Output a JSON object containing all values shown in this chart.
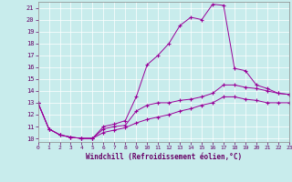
{
  "xlabel": "Windchill (Refroidissement éolien,°C)",
  "background_color": "#c8ecec",
  "line_color": "#990099",
  "xlim": [
    0,
    23
  ],
  "ylim": [
    9.7,
    21.5
  ],
  "xticks": [
    0,
    1,
    2,
    3,
    4,
    5,
    6,
    7,
    8,
    9,
    10,
    11,
    12,
    13,
    14,
    15,
    16,
    17,
    18,
    19,
    20,
    21,
    22,
    23
  ],
  "yticks": [
    10,
    11,
    12,
    13,
    14,
    15,
    16,
    17,
    18,
    19,
    20,
    21
  ],
  "series1": [
    [
      0,
      13.0
    ],
    [
      1,
      10.8
    ],
    [
      2,
      10.3
    ],
    [
      3,
      10.1
    ],
    [
      4,
      10.0
    ],
    [
      5,
      10.0
    ],
    [
      6,
      11.0
    ],
    [
      7,
      11.2
    ],
    [
      8,
      11.5
    ],
    [
      9,
      13.5
    ],
    [
      10,
      16.2
    ],
    [
      11,
      17.0
    ],
    [
      12,
      18.0
    ],
    [
      13,
      19.5
    ],
    [
      14,
      20.2
    ],
    [
      15,
      20.0
    ],
    [
      16,
      21.3
    ],
    [
      17,
      21.2
    ],
    [
      18,
      15.9
    ],
    [
      19,
      15.7
    ],
    [
      20,
      14.5
    ],
    [
      21,
      14.2
    ],
    [
      22,
      13.8
    ],
    [
      23,
      13.7
    ]
  ],
  "series2": [
    [
      0,
      13.0
    ],
    [
      1,
      10.8
    ],
    [
      2,
      10.3
    ],
    [
      3,
      10.1
    ],
    [
      4,
      10.0
    ],
    [
      5,
      10.0
    ],
    [
      6,
      10.8
    ],
    [
      7,
      11.0
    ],
    [
      8,
      11.1
    ],
    [
      9,
      12.3
    ],
    [
      10,
      12.8
    ],
    [
      11,
      13.0
    ],
    [
      12,
      13.0
    ],
    [
      13,
      13.2
    ],
    [
      14,
      13.3
    ],
    [
      15,
      13.5
    ],
    [
      16,
      13.8
    ],
    [
      17,
      14.5
    ],
    [
      18,
      14.5
    ],
    [
      19,
      14.3
    ],
    [
      20,
      14.2
    ],
    [
      21,
      14.0
    ],
    [
      22,
      13.8
    ],
    [
      23,
      13.7
    ]
  ],
  "series3": [
    [
      0,
      13.0
    ],
    [
      1,
      10.8
    ],
    [
      2,
      10.3
    ],
    [
      3,
      10.1
    ],
    [
      4,
      10.0
    ],
    [
      5,
      10.0
    ],
    [
      6,
      10.5
    ],
    [
      7,
      10.7
    ],
    [
      8,
      10.9
    ],
    [
      9,
      11.3
    ],
    [
      10,
      11.6
    ],
    [
      11,
      11.8
    ],
    [
      12,
      12.0
    ],
    [
      13,
      12.3
    ],
    [
      14,
      12.5
    ],
    [
      15,
      12.8
    ],
    [
      16,
      13.0
    ],
    [
      17,
      13.5
    ],
    [
      18,
      13.5
    ],
    [
      19,
      13.3
    ],
    [
      20,
      13.2
    ],
    [
      21,
      13.0
    ],
    [
      22,
      13.0
    ],
    [
      23,
      13.0
    ]
  ]
}
